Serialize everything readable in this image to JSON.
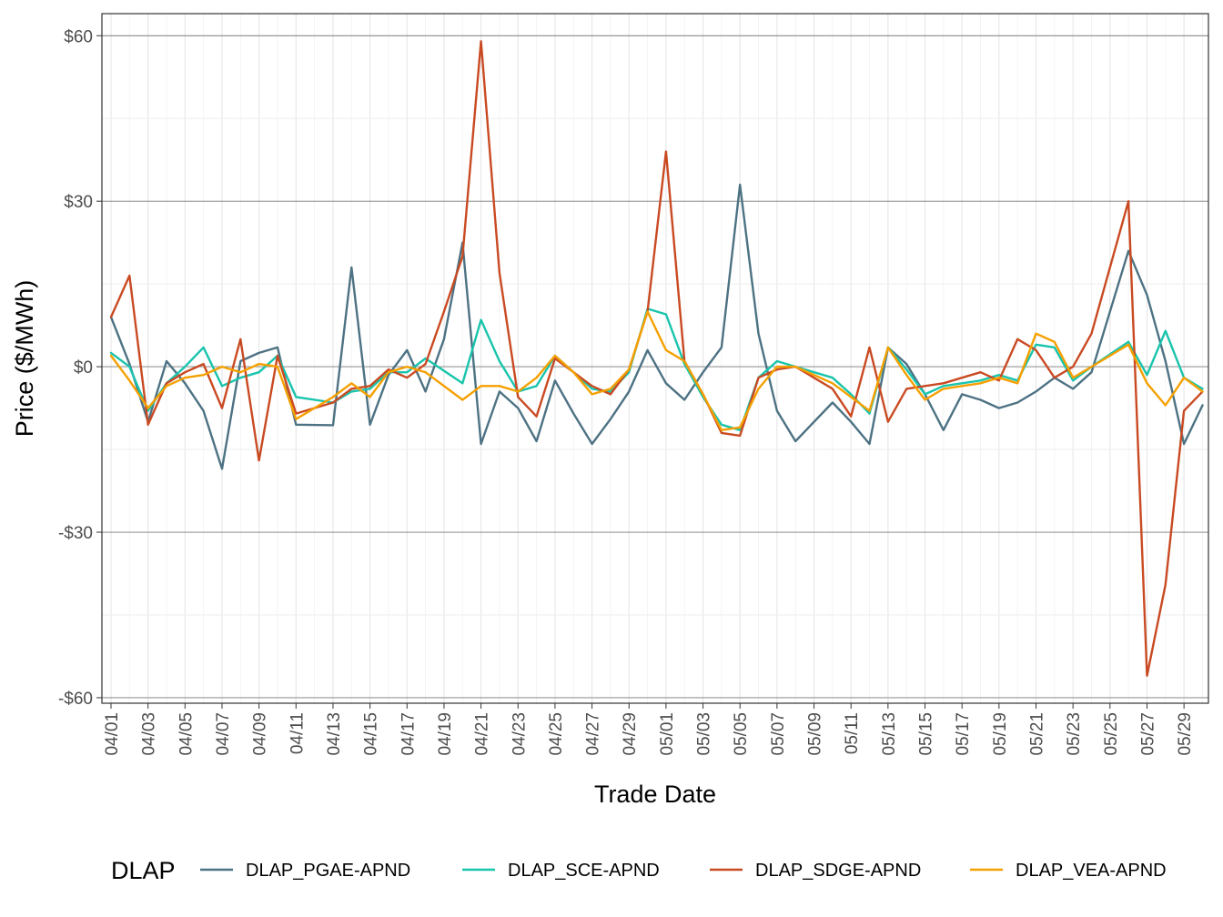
{
  "chart_data": {
    "type": "line",
    "xlabel": "Trade Date",
    "ylabel": "Price ($/MWh)",
    "ylim": [
      -61,
      64
    ],
    "y_ticks": [
      {
        "value": 60,
        "label": "$60"
      },
      {
        "value": 30,
        "label": "$30"
      },
      {
        "value": 0,
        "label": "$0"
      },
      {
        "value": -30,
        "label": "-$30"
      },
      {
        "value": -60,
        "label": "-$60"
      }
    ],
    "x": [
      "04/01",
      "04/02",
      "04/03",
      "04/04",
      "04/05",
      "04/06",
      "04/07",
      "04/08",
      "04/09",
      "04/10",
      "04/11",
      "04/12",
      "04/13",
      "04/14",
      "04/15",
      "04/16",
      "04/17",
      "04/18",
      "04/19",
      "04/20",
      "04/21",
      "04/22",
      "04/23",
      "04/24",
      "04/25",
      "04/26",
      "04/27",
      "04/28",
      "04/29",
      "04/30",
      "05/01",
      "05/02",
      "05/03",
      "05/04",
      "05/05",
      "05/06",
      "05/07",
      "05/08",
      "05/09",
      "05/10",
      "05/11",
      "05/12",
      "05/13",
      "05/14",
      "05/15",
      "05/16",
      "05/17",
      "05/18",
      "05/19",
      "05/20",
      "05/21",
      "05/22",
      "05/23",
      "05/24",
      "05/25",
      "05/26",
      "05/27",
      "05/28",
      "05/29",
      "05/30"
    ],
    "x_tick_labels": [
      "04/01",
      "04/03",
      "04/05",
      "04/07",
      "04/09",
      "04/11",
      "04/13",
      "04/15",
      "04/17",
      "04/19",
      "04/21",
      "04/23",
      "04/25",
      "04/27",
      "04/29",
      "05/01",
      "05/03",
      "05/05",
      "05/07",
      "05/09",
      "05/11",
      "05/13",
      "05/15",
      "05/17",
      "05/19",
      "05/21",
      "05/23",
      "05/25",
      "05/27",
      "05/29"
    ],
    "legend_title": "DLAP",
    "legend_position": "bottom",
    "grid": true,
    "series": [
      {
        "name": "DLAP_PGAE-APND",
        "color": "#4d7283",
        "values": [
          9,
          0.5,
          -10,
          1,
          -3,
          -8,
          -18.5,
          1,
          2.5,
          3.5,
          -10.5,
          null,
          -10.6,
          18,
          -10.5,
          -1.5,
          3,
          -4.5,
          5,
          22.5,
          -14,
          -4.5,
          -7.5,
          -13.5,
          -2.5,
          -8.5,
          -14,
          -9.5,
          -4.5,
          3,
          -3,
          -6,
          -1,
          3.5,
          33,
          6,
          -8,
          -13.5,
          null,
          -6.5,
          -10,
          -14,
          3.5,
          0.5,
          -5,
          -11.5,
          -5,
          -6,
          -7.5,
          -6.5,
          -4.5,
          -2,
          -4,
          -1,
          null,
          21,
          13,
          1,
          -14,
          -7
        ]
      },
      {
        "name": "DLAP_SCE-APND",
        "color": "#19c4ac",
        "values": [
          2.5,
          0,
          -8,
          -3,
          0,
          3.5,
          -3.5,
          -2,
          -1,
          2,
          -5.5,
          null,
          -6.5,
          -4.5,
          -4,
          -1,
          -1,
          1.5,
          null,
          -3,
          8.5,
          1,
          -4.5,
          -3.5,
          2,
          -1,
          -4,
          -4.5,
          -1,
          10.5,
          9.5,
          0.5,
          -5.5,
          -10.5,
          -11.5,
          -2,
          1,
          0,
          null,
          -2,
          -5,
          -8.5,
          3.5,
          -0.5,
          -5,
          -3.5,
          -3,
          -2.5,
          -1.5,
          -2.5,
          4,
          3.5,
          -2.5,
          0,
          null,
          4.5,
          -1.5,
          6.5,
          -2,
          -4
        ]
      },
      {
        "name": "DLAP_SDGE-APND",
        "color": "#c94a22",
        "values": [
          9,
          16.5,
          -10.5,
          -3,
          -1,
          0.5,
          -7.5,
          5,
          -17,
          2,
          -8.5,
          null,
          -6.5,
          -4,
          -3.5,
          -0.5,
          -2,
          0.5,
          10,
          20,
          59,
          17,
          -5.5,
          -9,
          1.5,
          -1,
          -3.5,
          -5,
          -0.5,
          10,
          39,
          1,
          -5,
          -12,
          -12.5,
          -2,
          -0.5,
          0,
          null,
          -4,
          -9,
          3.5,
          -10,
          -4,
          -3.5,
          -3,
          -2,
          -1,
          -2.5,
          5,
          3,
          -2,
          0,
          6,
          null,
          30,
          -56,
          -39.5,
          -8,
          -4.5
        ]
      },
      {
        "name": "DLAP_VEA-APND",
        "color": "#f5a000",
        "values": [
          2,
          -2.5,
          -7.5,
          -3.5,
          -2,
          -1.5,
          0,
          -1,
          0.5,
          0,
          -9.5,
          null,
          -5.5,
          -3,
          -5.5,
          -1,
          0,
          -1,
          null,
          -6,
          -3.5,
          -3.5,
          -4.5,
          -2,
          2,
          -1,
          -5,
          -4,
          -0.5,
          10,
          3,
          1,
          -5,
          -11.5,
          -11,
          -4,
          0,
          0,
          null,
          -3,
          -5.5,
          -8,
          3.5,
          -1.5,
          -6,
          -4,
          -3.5,
          -3,
          -2,
          -3,
          6,
          4.5,
          -2,
          0,
          null,
          4,
          -3,
          -7,
          -2,
          -4.5
        ]
      }
    ]
  }
}
